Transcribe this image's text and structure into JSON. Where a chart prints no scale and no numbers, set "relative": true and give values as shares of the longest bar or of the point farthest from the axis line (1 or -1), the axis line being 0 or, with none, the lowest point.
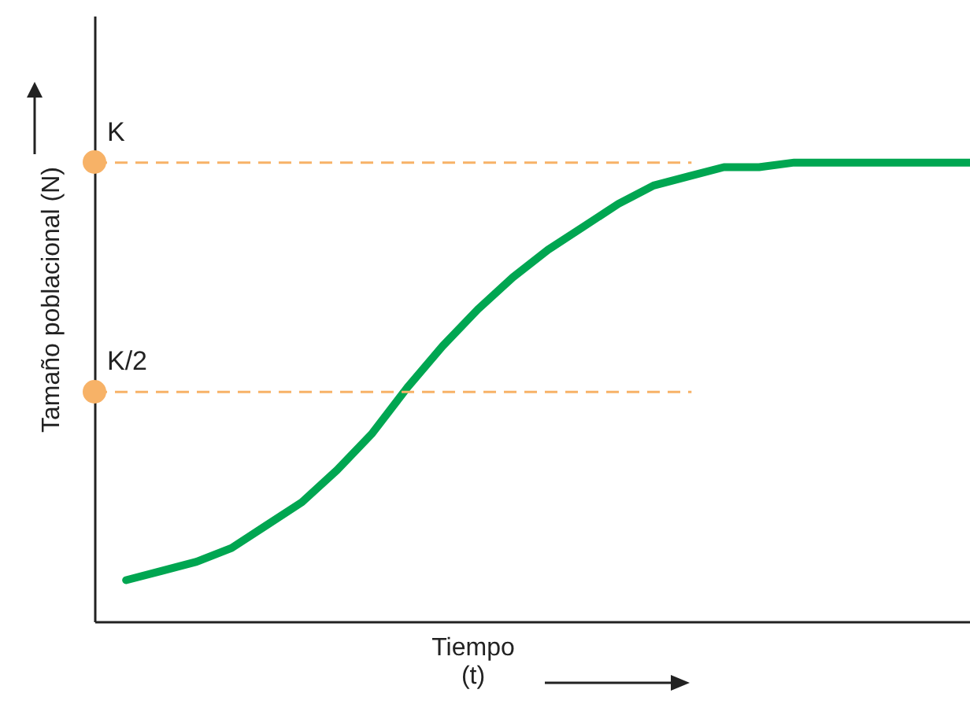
{
  "chart_data": {
    "type": "line",
    "relative": true,
    "xlabel": "Tiempo (t)",
    "ylabel": "Tamaño poblacional (N)",
    "categories": [
      null,
      null,
      null,
      null,
      null,
      null,
      null,
      null,
      null,
      null,
      null,
      null,
      null,
      null,
      null,
      null,
      null,
      null,
      null,
      null,
      null,
      null,
      null,
      null,
      null
    ],
    "series": [
      {
        "color": "#00a651",
        "values": [
          0.09,
          0.11,
          0.13,
          0.16,
          0.21,
          0.26,
          0.33,
          0.41,
          0.51,
          0.6,
          0.68,
          0.75,
          0.81,
          0.86,
          0.91,
          0.95,
          0.97,
          0.99,
          0.99,
          1,
          1,
          1,
          1,
          1,
          1
        ]
      }
    ],
    "ref_lines": [
      {
        "axis": "y",
        "value": 1,
        "label": "K",
        "color": "#f7b267",
        "line_style": "dashed"
      },
      {
        "axis": "y",
        "value": 0.5,
        "label": "K/2",
        "color": "#f7b267",
        "line_style": "dashed"
      }
    ],
    "tick_labels": false,
    "grid": false
  }
}
